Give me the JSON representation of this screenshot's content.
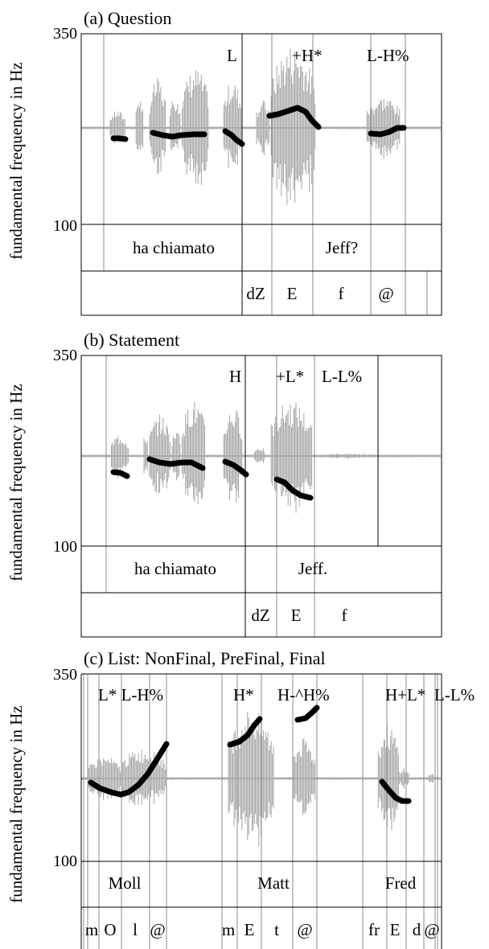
{
  "panels": [
    {
      "title": "(a) Question",
      "ylabel": "fundamental frequency in Hz",
      "ymax_label": "350",
      "ymin_label": "100",
      "tones": [
        "L",
        "+H*",
        "L-H%"
      ],
      "words": [
        "ha chiamato",
        "Jeff?"
      ],
      "segments": [
        "dZ",
        "E",
        "f",
        "@"
      ]
    },
    {
      "title": "(b) Statement",
      "ylabel": "fundamental frequency in Hz",
      "ymax_label": "350",
      "ymin_label": "100",
      "tones": [
        "H",
        "+L*",
        "L-L%"
      ],
      "words": [
        "ha chiamato",
        "Jeff."
      ],
      "segments": [
        "dZ",
        "E",
        "f"
      ]
    },
    {
      "title": "(c) List: NonFinal, PreFinal, Final",
      "ylabel": "fundamental frequency in Hz",
      "ymax_label": "350",
      "ymin_label": "100",
      "tones": [
        "L* L-H%",
        "H*",
        "H-^H%",
        "H+L*",
        "L-L%"
      ],
      "words": [
        "Moll",
        "Matt",
        "Fred"
      ],
      "segments": [
        "m",
        "O",
        "l",
        "@",
        "m",
        "E",
        "t",
        "@",
        "fr",
        "E",
        "d",
        "@"
      ]
    }
  ],
  "colors": {
    "waveform": "#a6a6a6",
    "pitch": "#000000",
    "grid": "#000000",
    "boundary": "#8c8c8c"
  }
}
